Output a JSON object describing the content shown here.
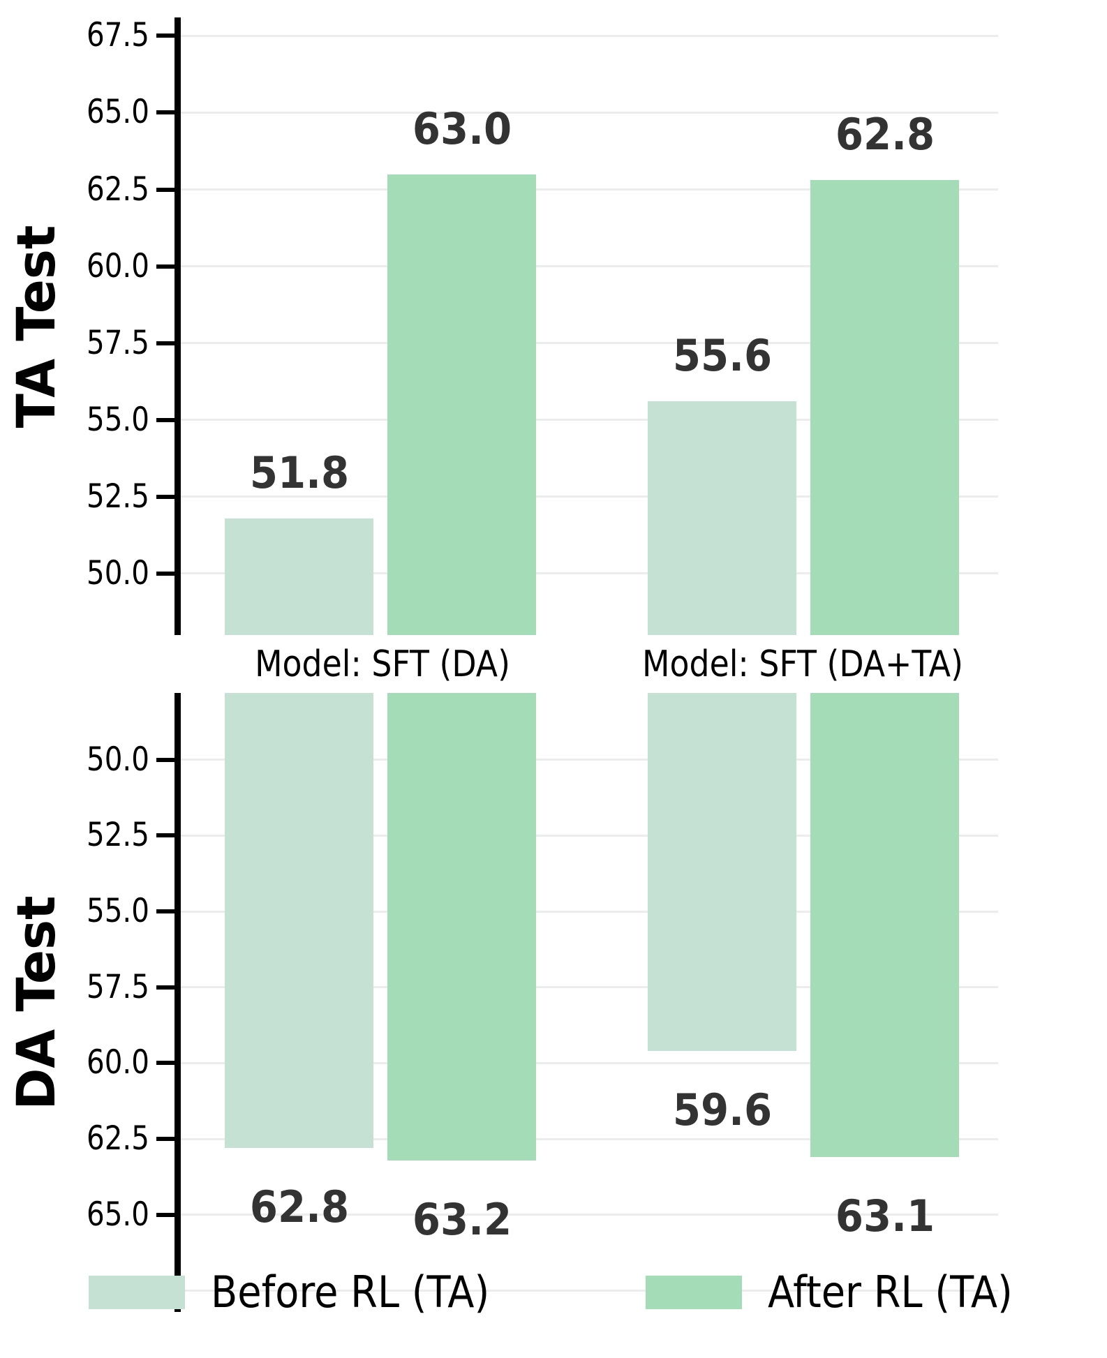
{
  "figure": {
    "background": "#ffffff",
    "colors": {
      "before": "#c5e1d3",
      "after": "#a5dcb8",
      "value_label": "#333333",
      "grid": "#ececec",
      "axis": "#000000"
    }
  },
  "group_labels": [
    "Model: SFT (DA)",
    "Model: SFT (DA+TA)"
  ],
  "legend": {
    "items": [
      {
        "label": "Before RL (TA)",
        "series": "before"
      },
      {
        "label": "After RL (TA)",
        "series": "after"
      }
    ]
  },
  "chart_data": [
    {
      "type": "bar",
      "panel": "top",
      "ylabel": "TA Test",
      "orientation": "vertical",
      "inverted": false,
      "grid": true,
      "ylim": [
        48.0,
        68.1
      ],
      "yticks": [
        67.5,
        65.0,
        62.5,
        60.0,
        57.5,
        55.0,
        52.5,
        50.0
      ],
      "yticks_unlabeled": [],
      "categories": [
        "Model: SFT (DA)",
        "Model: SFT (DA+TA)"
      ],
      "series": [
        {
          "name": "Before RL (TA)",
          "color_key": "before",
          "values": [
            51.8,
            55.6
          ]
        },
        {
          "name": "After RL (TA)",
          "color_key": "after",
          "values": [
            63.0,
            62.8
          ]
        }
      ]
    },
    {
      "type": "bar",
      "panel": "bottom",
      "ylabel": "DA Test",
      "orientation": "vertical",
      "inverted": true,
      "grid": true,
      "ylim": [
        47.8,
        68.2
      ],
      "yticks": [
        50.0,
        52.5,
        55.0,
        57.5,
        60.0,
        62.5,
        65.0
      ],
      "yticks_unlabeled": [
        67.5
      ],
      "categories": [
        "Model: SFT (DA)",
        "Model: SFT (DA+TA)"
      ],
      "series": [
        {
          "name": "Before RL (TA)",
          "color_key": "before",
          "values": [
            62.8,
            59.6
          ]
        },
        {
          "name": "After RL (TA)",
          "color_key": "after",
          "values": [
            63.2,
            63.1
          ]
        }
      ]
    }
  ]
}
